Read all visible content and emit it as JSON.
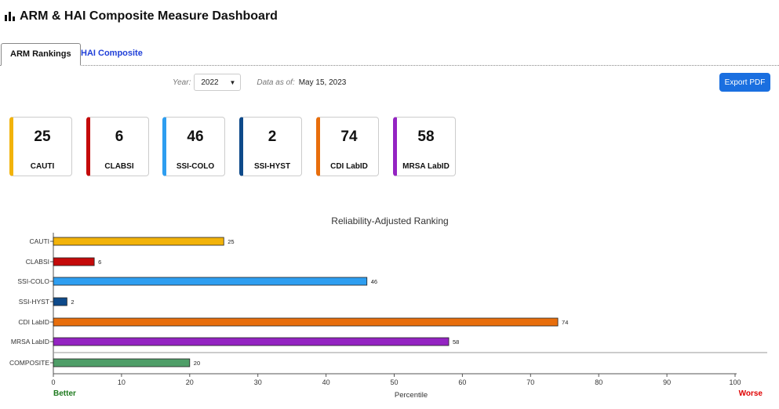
{
  "header": {
    "title": "ARM & HAI Composite Measure Dashboard",
    "icon": "bar-chart-icon"
  },
  "tabs": [
    {
      "label": "ARM Rankings",
      "active": true
    },
    {
      "label": "HAI Composite",
      "active": false
    }
  ],
  "toolbar": {
    "year_label": "Year:",
    "year_value": "2022",
    "asof_label": "Data as of:",
    "asof_value": "May 15, 2023",
    "export_label": "Export PDF"
  },
  "cards": [
    {
      "value": "25",
      "name": "CAUTI",
      "color": "#f2b30a"
    },
    {
      "value": "6",
      "name": "CLABSI",
      "color": "#c40a0a"
    },
    {
      "value": "46",
      "name": "SSI-COLO",
      "color": "#2e9ef0"
    },
    {
      "value": "2",
      "name": "SSI-HYST",
      "color": "#0e4a8a"
    },
    {
      "value": "74",
      "name": "CDI LabID",
      "color": "#e86e0c"
    },
    {
      "value": "58",
      "name": "MRSA LabID",
      "color": "#9424c2"
    }
  ],
  "chart_data": {
    "type": "bar",
    "orientation": "horizontal",
    "title": "Reliability-Adjusted Ranking",
    "xlabel": "Percentile",
    "xlim": [
      0,
      100
    ],
    "xticks": [
      0,
      10,
      20,
      30,
      40,
      50,
      60,
      70,
      80,
      90,
      100
    ],
    "categories": [
      "CAUTI",
      "CLABSI",
      "SSI-COLO",
      "SSI-HYST",
      "CDI LabID",
      "MRSA LabID",
      "COMPOSITE"
    ],
    "values": [
      25,
      6,
      46,
      2,
      74,
      58,
      20
    ],
    "colors": [
      "#f2b30a",
      "#c40a0a",
      "#2e9ef0",
      "#0e4a8a",
      "#e86e0c",
      "#9424c2",
      "#4f9e68"
    ],
    "better_label": "Better",
    "worse_label": "Worse",
    "better_color": "#1e7a1e",
    "worse_color": "#e00000"
  }
}
